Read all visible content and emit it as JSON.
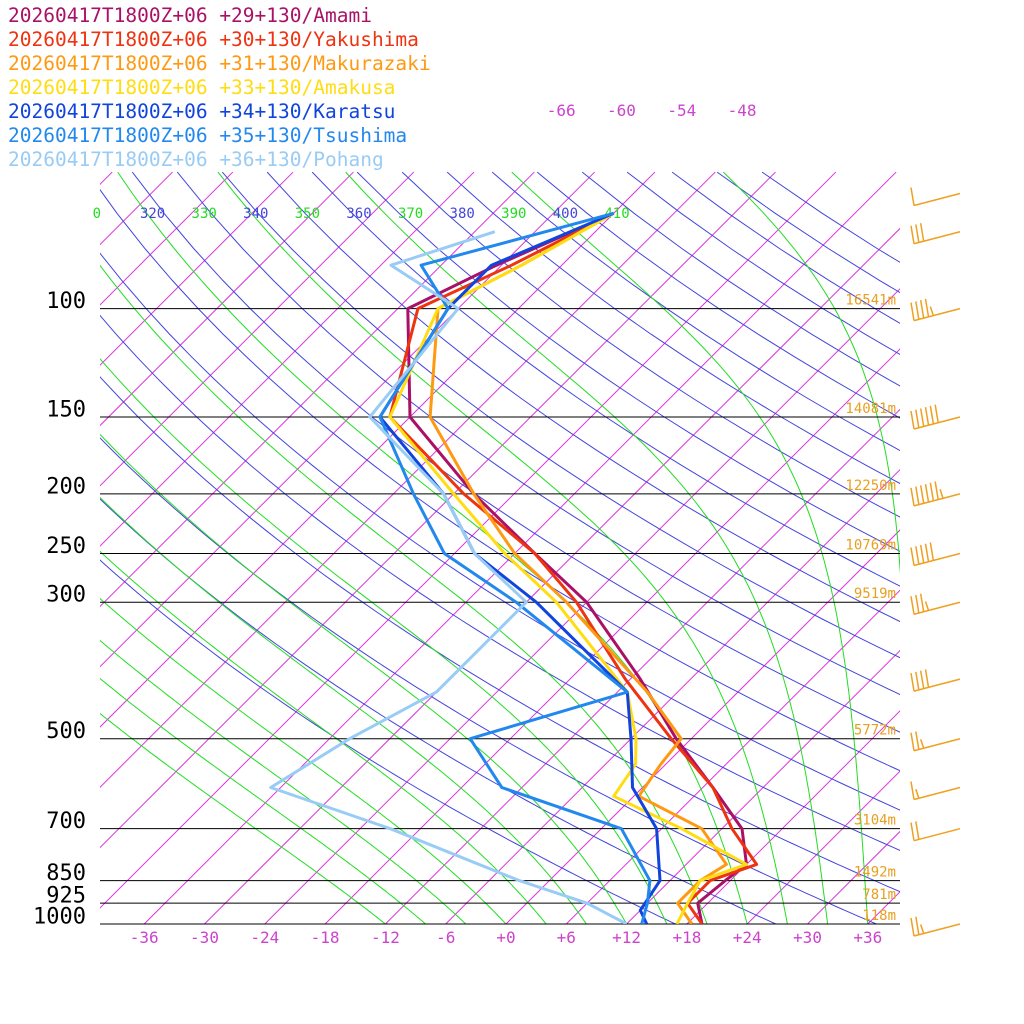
{
  "chart_data": {
    "type": "skew-t",
    "legend_placement": "top-left",
    "pressure_ticks": [
      100,
      150,
      200,
      250,
      300,
      500,
      700,
      850,
      925,
      1000
    ],
    "pressure_labels": [
      "100",
      "150",
      "200",
      "250",
      "300",
      "500",
      "700",
      "850",
      "925",
      "1000"
    ],
    "temp_tick_labels": [
      "-36",
      "-30",
      "-24",
      "-18",
      "-12",
      "-6",
      "+0",
      "+6",
      "+12",
      "+18",
      "+24",
      "+30",
      "+36"
    ],
    "height_labels": [
      {
        "p": 100,
        "text": "16541m"
      },
      {
        "p": 150,
        "text": "14081m"
      },
      {
        "p": 200,
        "text": "12250m"
      },
      {
        "p": 250,
        "text": "10769m"
      },
      {
        "p": 300,
        "text": "9519m"
      },
      {
        "p": 500,
        "text": "5772m"
      },
      {
        "p": 700,
        "text": "3104m"
      },
      {
        "p": 850,
        "text": "1492m"
      },
      {
        "p": 925,
        "text": "781m"
      },
      {
        "p": 1000,
        "text": "118m"
      }
    ],
    "isotherm_top_labels": [
      "-66",
      "-60",
      "-54",
      "-48"
    ],
    "theta_labels": [
      "0",
      "320",
      "330",
      "340",
      "350",
      "360",
      "370",
      "380",
      "390",
      "400",
      "410"
    ],
    "colors": {
      "isotherm": "#dd33dd",
      "dry_adiabat": "#4444dd",
      "moist_adiabat": "#22dd22",
      "isobar": "#000000",
      "height_label": "#e8a020",
      "barb": "#f0a020"
    },
    "series": [
      {
        "name": "20260417T1800Z+06 +29+130/Amami",
        "color": "#aa1166",
        "points": [
          [
            1000,
            19.5
          ],
          [
            925,
            17
          ],
          [
            850,
            17.5
          ],
          [
            800,
            18
          ],
          [
            700,
            14
          ],
          [
            600,
            7
          ],
          [
            500,
            -1.5
          ],
          [
            400,
            -11
          ],
          [
            300,
            -24
          ],
          [
            250,
            -34
          ],
          [
            200,
            -46
          ],
          [
            150,
            -60
          ],
          [
            100,
            -71
          ],
          [
            85,
            -66.5
          ],
          [
            70,
            -60
          ]
        ]
      },
      {
        "name": "20260417T1800Z+06 +30+130/Yakushima",
        "color": "#ee3311",
        "points": [
          [
            1000,
            19.5
          ],
          [
            925,
            16
          ],
          [
            850,
            16
          ],
          [
            800,
            19
          ],
          [
            700,
            13
          ],
          [
            600,
            7
          ],
          [
            500,
            -2
          ],
          [
            400,
            -12.5
          ],
          [
            300,
            -25
          ],
          [
            250,
            -34
          ],
          [
            200,
            -47
          ],
          [
            150,
            -62
          ],
          [
            100,
            -70
          ],
          [
            85,
            -65
          ],
          [
            70,
            -60
          ]
        ]
      },
      {
        "name": "20260417T1800Z+06 +31+130/Makurazaki",
        "color": "#ff9911",
        "points": [
          [
            1000,
            18.5
          ],
          [
            925,
            15
          ],
          [
            850,
            15
          ],
          [
            800,
            16
          ],
          [
            700,
            10
          ],
          [
            620,
            0.5
          ],
          [
            550,
            -0.5
          ],
          [
            500,
            -1
          ],
          [
            420,
            -9
          ],
          [
            300,
            -26
          ],
          [
            250,
            -36
          ],
          [
            200,
            -46
          ],
          [
            150,
            -58
          ],
          [
            100,
            -68
          ],
          [
            85,
            -64
          ],
          [
            70,
            -60
          ]
        ]
      },
      {
        "name": "20260417T1800Z+06 +33+130/Amakusa",
        "color": "#ffdd11",
        "points": [
          [
            1000,
            17
          ],
          [
            925,
            16
          ],
          [
            850,
            15
          ],
          [
            800,
            18
          ],
          [
            700,
            8
          ],
          [
            620,
            -2
          ],
          [
            550,
            -3
          ],
          [
            500,
            -5.5
          ],
          [
            420,
            -11
          ],
          [
            300,
            -27
          ],
          [
            250,
            -37
          ],
          [
            200,
            -48
          ],
          [
            150,
            -62
          ],
          [
            100,
            -68
          ],
          [
            85,
            -64
          ],
          [
            70,
            -60
          ]
        ]
      },
      {
        "name": "20260417T1800Z+06 +34+130/Karatsu",
        "color": "#1144dd",
        "points": [
          [
            1000,
            14
          ],
          [
            950,
            12
          ],
          [
            850,
            11
          ],
          [
            700,
            5.5
          ],
          [
            600,
            -1
          ],
          [
            500,
            -6
          ],
          [
            420,
            -11
          ],
          [
            300,
            -29
          ],
          [
            250,
            -40
          ],
          [
            200,
            -49
          ],
          [
            150,
            -63
          ],
          [
            100,
            -67
          ],
          [
            85,
            -67
          ],
          [
            70,
            -60
          ]
        ]
      },
      {
        "name": "20260417T1800Z+06 +35+130/Tsushima",
        "color": "#2288ee",
        "points": [
          [
            1000,
            13.5
          ],
          [
            925,
            12
          ],
          [
            850,
            10
          ],
          [
            700,
            2
          ],
          [
            600,
            -14
          ],
          [
            500,
            -22
          ],
          [
            420,
            -11
          ],
          [
            300,
            -31
          ],
          [
            250,
            -43
          ],
          [
            200,
            -52
          ],
          [
            150,
            -63
          ],
          [
            100,
            -67
          ],
          [
            85,
            -74
          ],
          [
            70,
            -60
          ]
        ]
      },
      {
        "name": "20260417T1800Z+06 +36+130/Pohang",
        "color": "#99ccf5",
        "points": [
          [
            1000,
            12
          ],
          [
            925,
            6
          ],
          [
            850,
            -3
          ],
          [
            700,
            -21
          ],
          [
            600,
            -37
          ],
          [
            500,
            -34
          ],
          [
            420,
            -30
          ],
          [
            300,
            -30
          ],
          [
            250,
            -40
          ],
          [
            200,
            -49
          ],
          [
            150,
            -64
          ],
          [
            100,
            -66
          ],
          [
            85,
            -77
          ],
          [
            75,
            -70
          ]
        ]
      }
    ],
    "wind_barbs": [
      {
        "p": 65,
        "speed_kt": 10
      },
      {
        "p": 75,
        "speed_kt": 30
      },
      {
        "p": 100,
        "speed_kt": 45
      },
      {
        "p": 150,
        "speed_kt": 60
      },
      {
        "p": 200,
        "speed_kt": 65
      },
      {
        "p": 250,
        "speed_kt": 50
      },
      {
        "p": 300,
        "speed_kt": 35
      },
      {
        "p": 400,
        "speed_kt": 40
      },
      {
        "p": 500,
        "speed_kt": 25
      },
      {
        "p": 600,
        "speed_kt": 15
      },
      {
        "p": 700,
        "speed_kt": 20
      },
      {
        "p": 1000,
        "speed_kt": 25
      }
    ],
    "xlim": [
      -40,
      40
    ],
    "ylim_hpa": [
      1000,
      100
    ]
  }
}
